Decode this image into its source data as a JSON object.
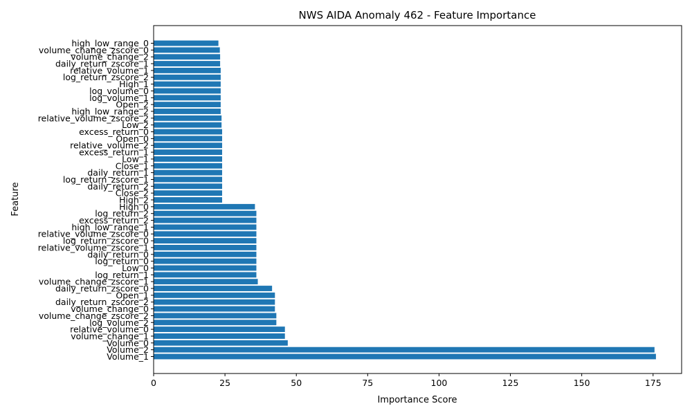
{
  "chart_data": {
    "type": "bar",
    "orientation": "horizontal",
    "title": "NWS AIDA Anomaly 462 - Feature Importance",
    "xlabel": "Importance Score",
    "ylabel": "Feature",
    "xlim": [
      0,
      185
    ],
    "xticks": [
      0,
      25,
      50,
      75,
      100,
      125,
      150,
      175
    ],
    "grid": false,
    "bar_color": "#1f77b4",
    "categories": [
      "Volume_1",
      "Volume_2",
      "Volume_0",
      "volume_change_1",
      "relative_volume_0",
      "log_volume_2",
      "volume_change_zscore_2",
      "volume_change_0",
      "daily_return_zscore_2",
      "Open_1",
      "daily_return_zscore_0",
      "volume_change_zscore_1",
      "log_return_1",
      "Low_0",
      "log_return_0",
      "daily_return_0",
      "relative_volume_zscore_1",
      "log_return_zscore_0",
      "relative_volume_zscore_0",
      "high_low_range_1",
      "excess_return_2",
      "log_return_2",
      "High_0",
      "High_2",
      "Close_2",
      "daily_return_2",
      "log_return_zscore_1",
      "daily_return_1",
      "Close_1",
      "Low_1",
      "excess_return_1",
      "relative_volume_2",
      "Open_0",
      "excess_return_0",
      "Low_2",
      "relative_volume_zscore_2",
      "high_low_range_2",
      "Open_2",
      "log_volume_1",
      "log_volume_0",
      "High_1",
      "log_return_zscore_2",
      "relative_volume_1",
      "daily_return_zscore_1",
      "volume_change_2",
      "volume_change_zscore_0",
      "high_low_range_0"
    ],
    "values": [
      176,
      175.5,
      47,
      46,
      46,
      43,
      43,
      42.5,
      42.5,
      42.5,
      41.5,
      36.5,
      36,
      36,
      36,
      36,
      36,
      36,
      36,
      36,
      36,
      36,
      35.5,
      24,
      24,
      24,
      24,
      24,
      24,
      24,
      24,
      24,
      24,
      24,
      23.8,
      23.8,
      23.5,
      23.5,
      23.5,
      23.5,
      23.5,
      23.5,
      23.5,
      23.3,
      23.3,
      23.2,
      22.7
    ]
  }
}
